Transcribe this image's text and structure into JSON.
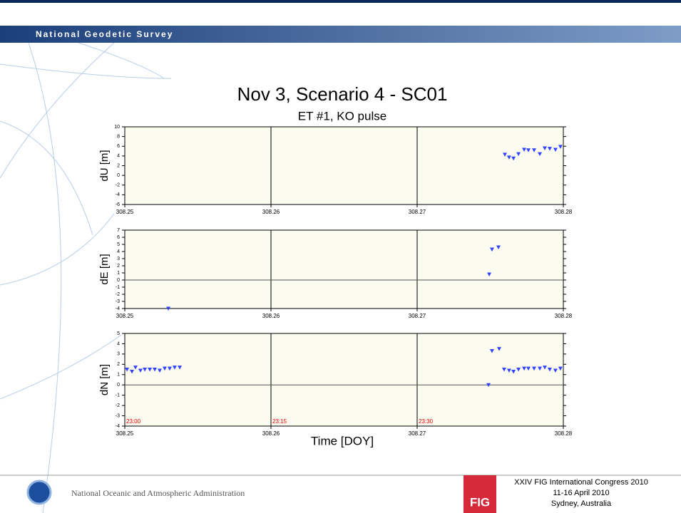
{
  "header": {
    "title": "National Geodetic Survey"
  },
  "figure": {
    "title": "Nov 3, Scenario 4 - SC01",
    "subtitle": "ET #1, KO pulse",
    "xlabel": "Time [DOY]"
  },
  "chart_data": [
    {
      "type": "scatter",
      "ylabel": "dU [m]",
      "color": "#3344ff",
      "grid": true,
      "xlim": [
        308.25,
        308.28
      ],
      "xticks": [
        308.25,
        308.26,
        308.27,
        308.28
      ],
      "ylim": [
        -6,
        10
      ],
      "yticks": [
        -6,
        -4,
        -2,
        0,
        2,
        4,
        6,
        8,
        10
      ],
      "x": [
        308.276,
        308.27629,
        308.27659,
        308.27693,
        308.27732,
        308.27761,
        308.278,
        308.27839,
        308.27873,
        308.27907,
        308.27946,
        308.2798
      ],
      "values": [
        4.3,
        3.7,
        3.5,
        4.4,
        5.3,
        5.2,
        5.2,
        4.4,
        5.6,
        5.5,
        5.3,
        5.9
      ]
    },
    {
      "type": "scatter",
      "ylabel": "dE [m]",
      "color": "#3344ff",
      "grid": true,
      "reference_line": 0,
      "xlim": [
        308.25,
        308.28
      ],
      "xticks": [
        308.25,
        308.26,
        308.27,
        308.28
      ],
      "ylim": [
        -4,
        7
      ],
      "yticks": [
        -4,
        -3,
        -2,
        -1,
        0,
        1,
        2,
        3,
        4,
        5,
        6,
        7
      ],
      "x": [
        308.25298,
        308.27493,
        308.27512,
        308.27556
      ],
      "values": [
        -4,
        0.8,
        4.3,
        4.6
      ]
    },
    {
      "type": "scatter",
      "ylabel": "dN [m]",
      "color": "#3344ff",
      "grid": true,
      "reference_line": 0,
      "xlim": [
        308.25,
        308.28
      ],
      "xticks": [
        308.25,
        308.26,
        308.27,
        308.28
      ],
      "ylim": [
        -4,
        5
      ],
      "yticks": [
        -4,
        -3,
        -2,
        -1,
        0,
        1,
        2,
        3,
        4,
        5
      ],
      "annotations": [
        "23:00",
        "23:15",
        "23:30"
      ],
      "x": [
        308.25015,
        308.25049,
        308.25073,
        308.25107,
        308.25137,
        308.25171,
        308.25205,
        308.25239,
        308.25273,
        308.25307,
        308.25341,
        308.25376,
        308.27488,
        308.27512,
        308.27561,
        308.27595,
        308.27629,
        308.27659,
        308.27693,
        308.27732,
        308.27761,
        308.278,
        308.27839,
        308.27873,
        308.27907,
        308.27946,
        308.2798
      ],
      "values": [
        1.5,
        1.3,
        1.7,
        1.4,
        1.5,
        1.5,
        1.5,
        1.4,
        1.6,
        1.6,
        1.7,
        1.7,
        0.0,
        3.3,
        3.5,
        1.5,
        1.4,
        1.3,
        1.5,
        1.6,
        1.6,
        1.6,
        1.6,
        1.7,
        1.5,
        1.4,
        1.6
      ]
    }
  ],
  "footer": {
    "agency": "National Oceanic and Atmospheric Administration",
    "logo": "FIG",
    "event": [
      "XXIV FIG International Congress 2010",
      "11-16 April 2010",
      "Sydney, Australia"
    ]
  }
}
